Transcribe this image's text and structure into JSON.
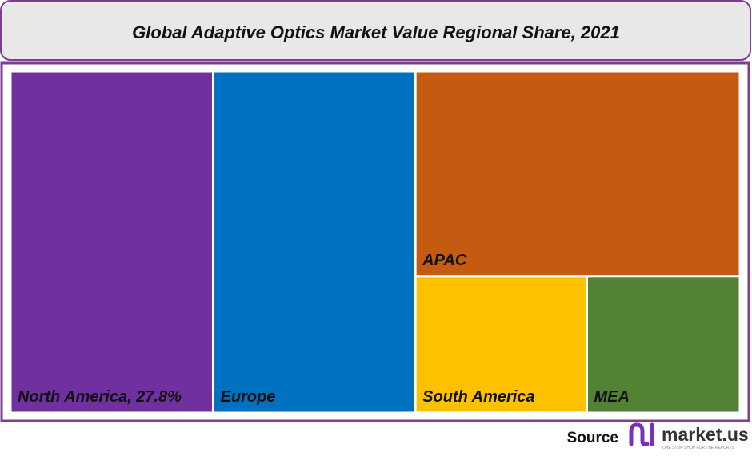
{
  "chart_data": {
    "type": "treemap",
    "title": "Global Adaptive Optics Market Value Regional Share, 2021",
    "categories": [
      "North America, 27.8%",
      "Europe",
      "APAC",
      "South America",
      "MEA"
    ],
    "values": [
      27.8,
      27.7,
      26.7,
      9.4,
      8.4
    ],
    "colors": [
      "#7030a0",
      "#0070c0",
      "#c55a11",
      "#ffc000",
      "#548235"
    ]
  },
  "footer": {
    "source": "Source",
    "brand": "market.us",
    "tagline": "ONE STOP SHOP FOR THE REPORTS"
  }
}
